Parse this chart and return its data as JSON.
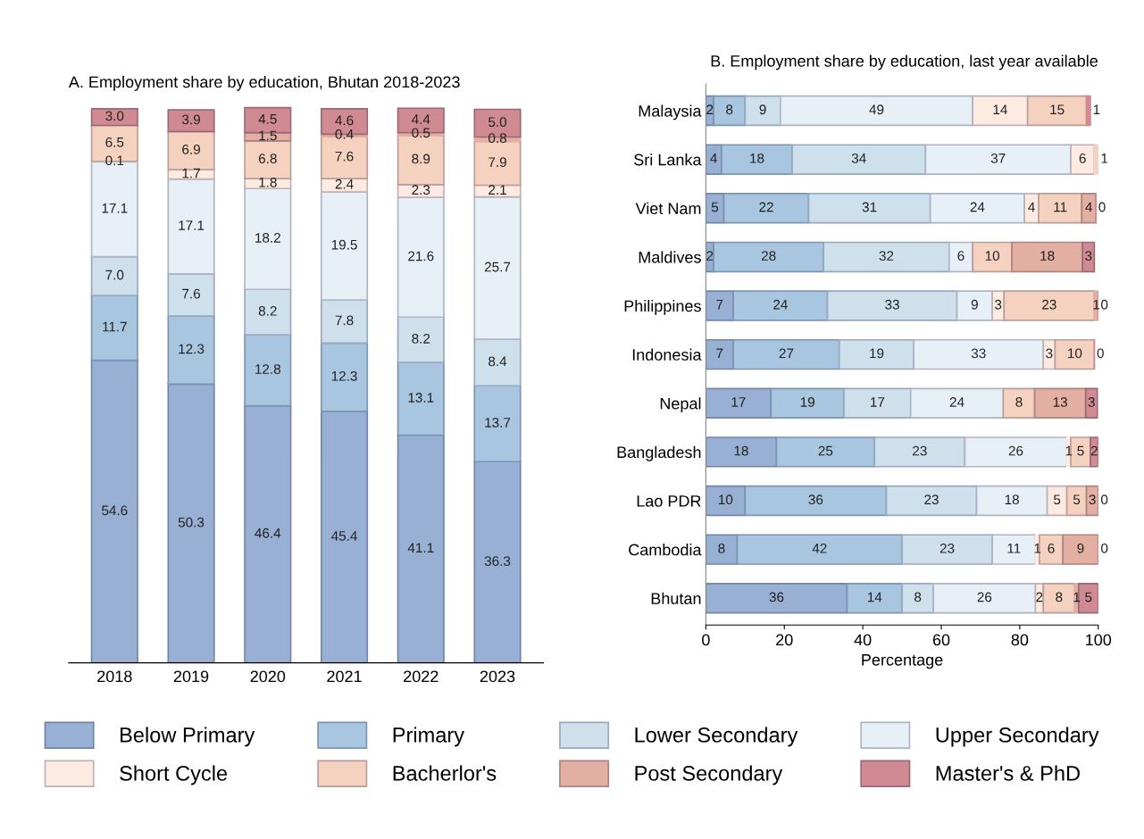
{
  "chart_data": [
    {
      "type": "bar",
      "title": "A. Employment share by education, Bhutan 2018-2023",
      "categories": [
        "2018",
        "2019",
        "2020",
        "2021",
        "2022",
        "2023"
      ],
      "stacked": true,
      "tick_labels": "x",
      "grid": false,
      "legend": "bottom",
      "series": [
        {
          "name": "Below Primary",
          "color": "#98b0d3",
          "values": [
            54.6,
            50.3,
            46.4,
            45.4,
            41.1,
            36.3
          ],
          "value_labels": [
            "54.6",
            "50.3",
            "46.4",
            "45.4",
            "41.1",
            "36.3"
          ]
        },
        {
          "name": "Primary",
          "color": "#a8c6df",
          "values": [
            11.7,
            12.3,
            12.8,
            12.3,
            13.1,
            13.7
          ],
          "value_labels": [
            "11.7",
            "12.3",
            "12.8",
            "12.3",
            "13.1",
            "13.7"
          ]
        },
        {
          "name": "Lower Secondary",
          "color": "#cde0ec",
          "values": [
            7.0,
            7.6,
            8.2,
            7.8,
            8.2,
            8.4
          ],
          "value_labels": [
            "7.0",
            "7.6",
            "8.2",
            "7.8",
            "8.2",
            "8.4"
          ]
        },
        {
          "name": "Upper Secondary",
          "color": "#e8f0f7",
          "values": [
            17.1,
            17.1,
            18.2,
            19.5,
            21.6,
            25.7
          ],
          "value_labels": [
            "17.1",
            "17.1",
            "18.2",
            "19.5",
            "21.6",
            "25.7"
          ]
        },
        {
          "name": "Short Cycle",
          "color": "#fdebe2",
          "values": [
            0.1,
            1.7,
            1.8,
            2.4,
            2.3,
            2.1
          ],
          "value_labels": [
            "0.1",
            "1.7",
            "1.8",
            "2.4",
            "2.3",
            "2.1"
          ]
        },
        {
          "name": "Bacherlor's",
          "color": "#f5d1c0",
          "values": [
            6.5,
            6.9,
            6.8,
            7.6,
            8.9,
            7.9
          ],
          "value_labels": [
            "6.5",
            "6.9",
            "6.8",
            "7.6",
            "8.9",
            "7.9"
          ]
        },
        {
          "name": "Post Secondary",
          "color": "#e4afa3",
          "values": [
            null,
            null,
            1.5,
            0.4,
            0.5,
            0.8
          ],
          "value_labels": [
            null,
            null,
            "1.5",
            "0.4",
            "0.5",
            "0.8"
          ]
        },
        {
          "name": "Master's & PhD",
          "color": "#cf8a92",
          "values": [
            3.0,
            3.9,
            4.5,
            4.6,
            4.4,
            5.0
          ],
          "value_labels": [
            "3.0",
            "3.9",
            "4.5",
            "4.6",
            "4.4",
            "5.0"
          ]
        }
      ]
    },
    {
      "type": "bar",
      "title": "B. Employment share by education, last year available",
      "orientation": "horizontal",
      "stacked": true,
      "grid": false,
      "xlabel": "Percentage",
      "xlim": [
        0,
        100
      ],
      "xticks": [
        0,
        20,
        40,
        60,
        80,
        100
      ],
      "categories": [
        "Malaysia",
        "Sri Lanka",
        "Viet Nam",
        "Maldives",
        "Philippines",
        "Indonesia",
        "Nepal",
        "Bangladesh",
        "Lao PDR",
        "Cambodia",
        "Bhutan"
      ],
      "series": [
        {
          "color": "#98b0d3",
          "values": [
            2,
            4,
            4.6,
            2,
            7,
            7,
            16.6,
            18,
            10,
            8,
            36
          ],
          "value_labels": [
            "2",
            "4",
            "5",
            "2",
            "7",
            "7",
            "17",
            "18",
            "10",
            "8",
            "36"
          ]
        },
        {
          "color": "#a8c6df",
          "values": [
            8,
            18,
            21.6,
            28,
            24,
            27,
            18.6,
            25,
            36,
            42,
            14
          ],
          "value_labels": [
            "8",
            "18",
            "22",
            "28",
            "24",
            "27",
            "19",
            "25",
            "36",
            "42",
            "14"
          ]
        },
        {
          "color": "#cde0ec",
          "values": [
            9,
            34,
            31,
            32,
            33,
            19,
            17,
            23,
            23,
            23,
            8
          ],
          "value_labels": [
            "9",
            "34",
            "31",
            "32",
            "33",
            "19",
            "17",
            "23",
            "23",
            "23",
            "8"
          ]
        },
        {
          "color": "#e8f0f7",
          "values": [
            49,
            37,
            24,
            6,
            9,
            33,
            23.6,
            26,
            18,
            11,
            26
          ],
          "value_labels": [
            "49",
            "37",
            "24",
            "6",
            "9",
            "33",
            "24",
            "26",
            "18",
            "11",
            "26"
          ]
        },
        {
          "color": "#fdebe2",
          "values": [
            14,
            6,
            3.6,
            null,
            3,
            3,
            null,
            1,
            5,
            1,
            2
          ],
          "value_labels": [
            "14",
            "6",
            "4",
            null,
            "3",
            "3",
            null,
            "1",
            "5",
            "1",
            "2"
          ]
        },
        {
          "color": "#f5d1c0",
          "values": [
            15,
            1,
            11,
            10,
            23,
            10,
            8,
            5,
            5,
            6,
            8
          ],
          "value_labels": [
            "15",
            "1",
            "11",
            "10",
            "23",
            "10",
            "8",
            "5",
            "5",
            "6",
            "8"
          ]
        },
        {
          "color": "#e4afa3",
          "values": [
            null,
            null,
            3.6,
            18,
            1,
            null,
            13,
            null,
            3,
            9,
            1
          ],
          "value_labels": [
            null,
            null,
            "4",
            "18",
            "1",
            null,
            "13",
            null,
            "3",
            "9",
            "1"
          ]
        },
        {
          "color": "#cf8a92",
          "values": [
            1,
            null,
            0,
            3,
            0,
            0,
            3,
            2,
            0,
            0,
            5
          ],
          "value_labels": [
            "1",
            null,
            "0",
            "3",
            "0",
            "0",
            "3",
            "2",
            "0",
            "0",
            "5"
          ]
        }
      ]
    }
  ]
}
